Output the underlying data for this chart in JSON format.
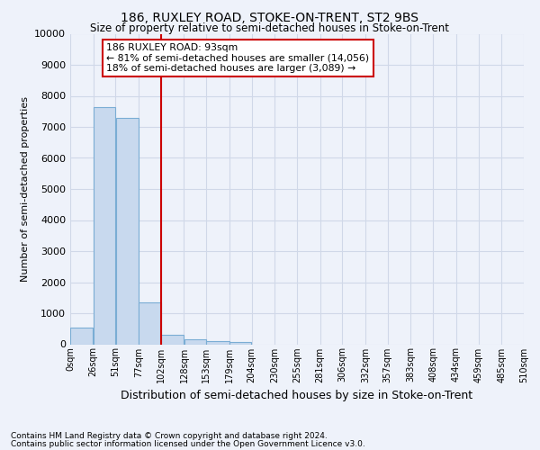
{
  "title": "186, RUXLEY ROAD, STOKE-ON-TRENT, ST2 9BS",
  "subtitle": "Size of property relative to semi-detached houses in Stoke-on-Trent",
  "xlabel": "Distribution of semi-detached houses by size in Stoke-on-Trent",
  "ylabel": "Number of semi-detached properties",
  "footer_line1": "Contains HM Land Registry data © Crown copyright and database right 2024.",
  "footer_line2": "Contains public sector information licensed under the Open Government Licence v3.0.",
  "annotation_title": "186 RUXLEY ROAD: 93sqm",
  "annotation_line1": "← 81% of semi-detached houses are smaller (14,056)",
  "annotation_line2": "18% of semi-detached houses are larger (3,089) →",
  "bin_edges": [
    0,
    26,
    51,
    77,
    102,
    128,
    153,
    179,
    204,
    230,
    255,
    281,
    306,
    332,
    357,
    383,
    408,
    434,
    459,
    485,
    510
  ],
  "bar_values": [
    550,
    7650,
    7300,
    1350,
    310,
    155,
    110,
    75,
    0,
    0,
    0,
    0,
    0,
    0,
    0,
    0,
    0,
    0,
    0,
    0
  ],
  "bar_color": "#c8d9ee",
  "bar_edgecolor": "#7aadd4",
  "vline_color": "#cc0000",
  "vline_x": 102,
  "ylim": [
    0,
    10000
  ],
  "yticks": [
    0,
    1000,
    2000,
    3000,
    4000,
    5000,
    6000,
    7000,
    8000,
    9000,
    10000
  ],
  "grid_color": "#d0d8e8",
  "background_color": "#eef2fa",
  "plot_bg_color": "#eef2fa",
  "annotation_box_edgecolor": "#cc0000",
  "annotation_box_facecolor": "#ffffff",
  "title_fontsize": 10,
  "subtitle_fontsize": 8.5,
  "ylabel_fontsize": 8,
  "xlabel_fontsize": 9,
  "footer_fontsize": 6.5,
  "ytick_fontsize": 8,
  "xtick_fontsize": 7
}
